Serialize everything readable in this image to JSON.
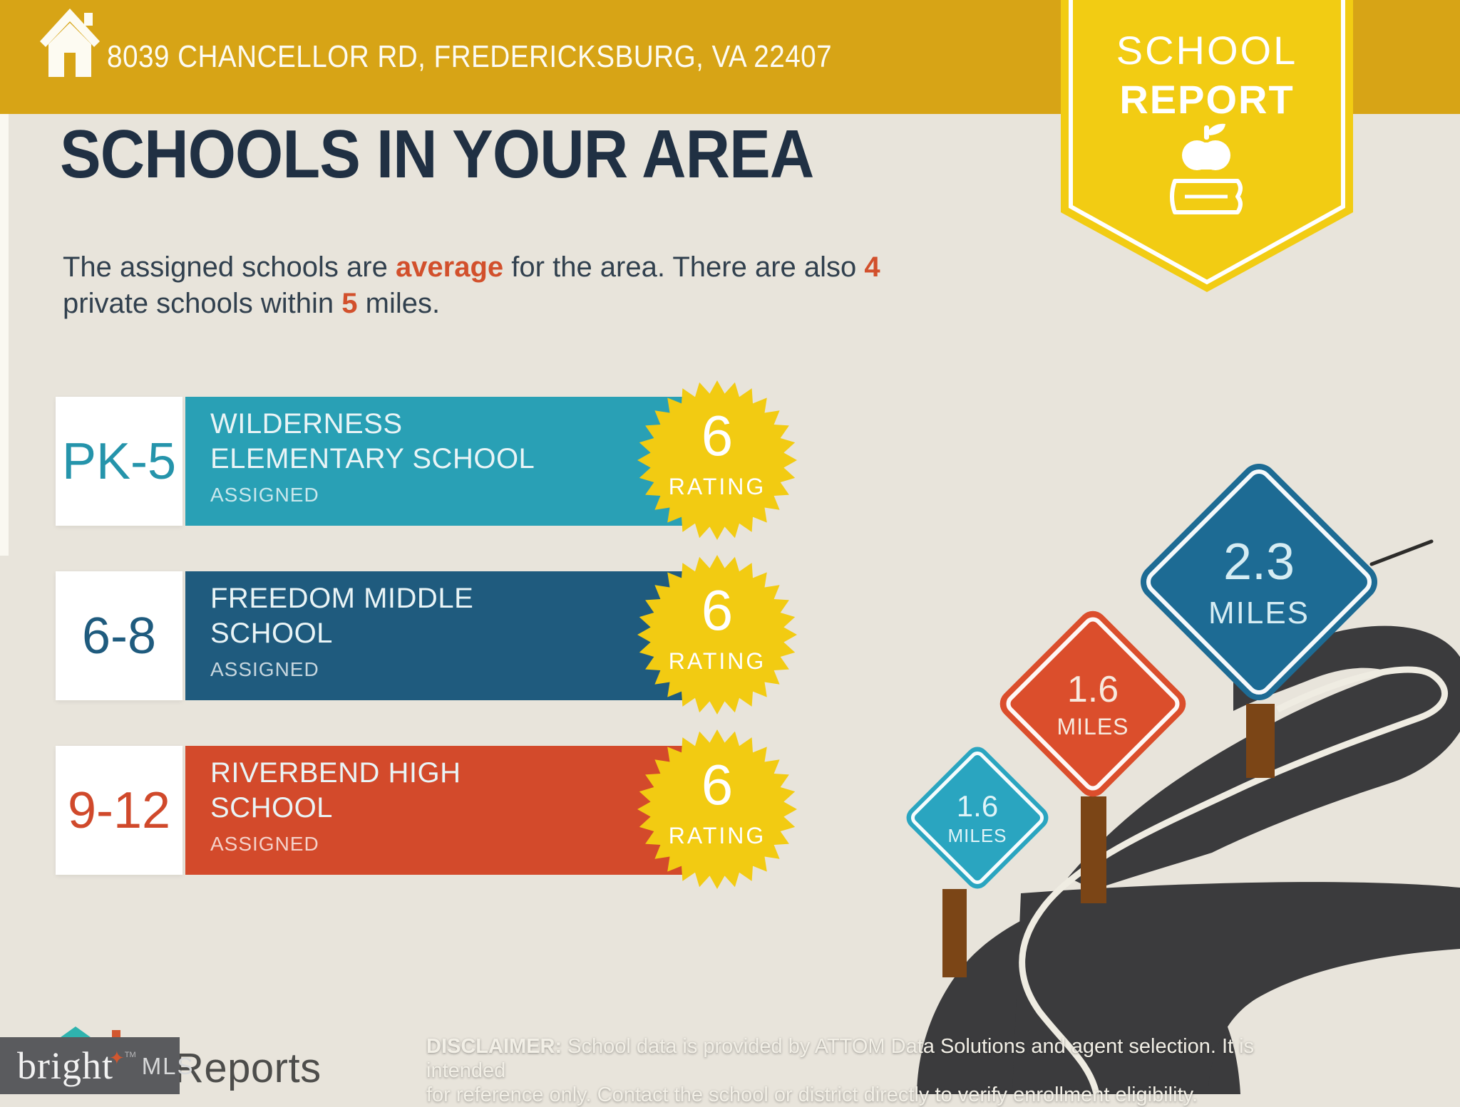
{
  "banner": {
    "address": "8039 CHANCELLOR RD, FREDERICKSBURG, VA 22407"
  },
  "badge": {
    "line1": "SCHOOL",
    "line2": "REPORT"
  },
  "heading": {
    "title": "SCHOOLS IN YOUR AREA",
    "subtitle": {
      "t1": "The assigned schools are ",
      "em1": "average",
      "t2": " for the area. There are also ",
      "em2": "4",
      "t3": "private schools within ",
      "em3": "5",
      "t4": " miles."
    }
  },
  "schools": [
    {
      "grades": "PK-5",
      "name_line1": "WILDERNESS",
      "name_line2": "ELEMENTARY SCHOOL",
      "status": "ASSIGNED",
      "rating": "6",
      "rating_label": "RATING",
      "color": "#29A0B5"
    },
    {
      "grades": "6-8",
      "name_line1": "FREEDOM MIDDLE",
      "name_line2": "SCHOOL",
      "status": "ASSIGNED",
      "rating": "6",
      "rating_label": "RATING",
      "color": "#1F5B7E"
    },
    {
      "grades": "9-12",
      "name_line1": "RIVERBEND HIGH",
      "name_line2": "SCHOOL",
      "status": "ASSIGNED",
      "rating": "6",
      "rating_label": "RATING",
      "color": "#D34A2B"
    }
  ],
  "signs": [
    {
      "value": "2.3",
      "unit": "MILES",
      "color": "#1D6B94"
    },
    {
      "value": "1.6",
      "unit": "MILES",
      "color": "#DB4E2C"
    },
    {
      "value": "1.6",
      "unit": "MILES",
      "color": "#2AA5C0"
    }
  ],
  "footer": {
    "brand": "bright",
    "brand_star": "✦",
    "brand_tm": "TM",
    "brand_suffix": "MLS",
    "reports": "Reports",
    "disclaimer_label": "DISCLAIMER:",
    "disclaimer_line1": " School data is provided by ATTOM Data Solutions and agent selection. It is intended",
    "disclaimer_line2": "for reference only. Contact the school or district directly to verify enrollment eligibility."
  },
  "colors": {
    "banner_gold": "#D7A416",
    "badge_yellow": "#F2CC13",
    "background": "#E8E4DB",
    "heading_navy": "#203043",
    "accent_red": "#D2502C",
    "burst_yellow": "#F2CB12",
    "road_charcoal": "#3B3B3D",
    "post_brown": "#7B4516",
    "bright_box_gray": "#5A5B5E"
  }
}
